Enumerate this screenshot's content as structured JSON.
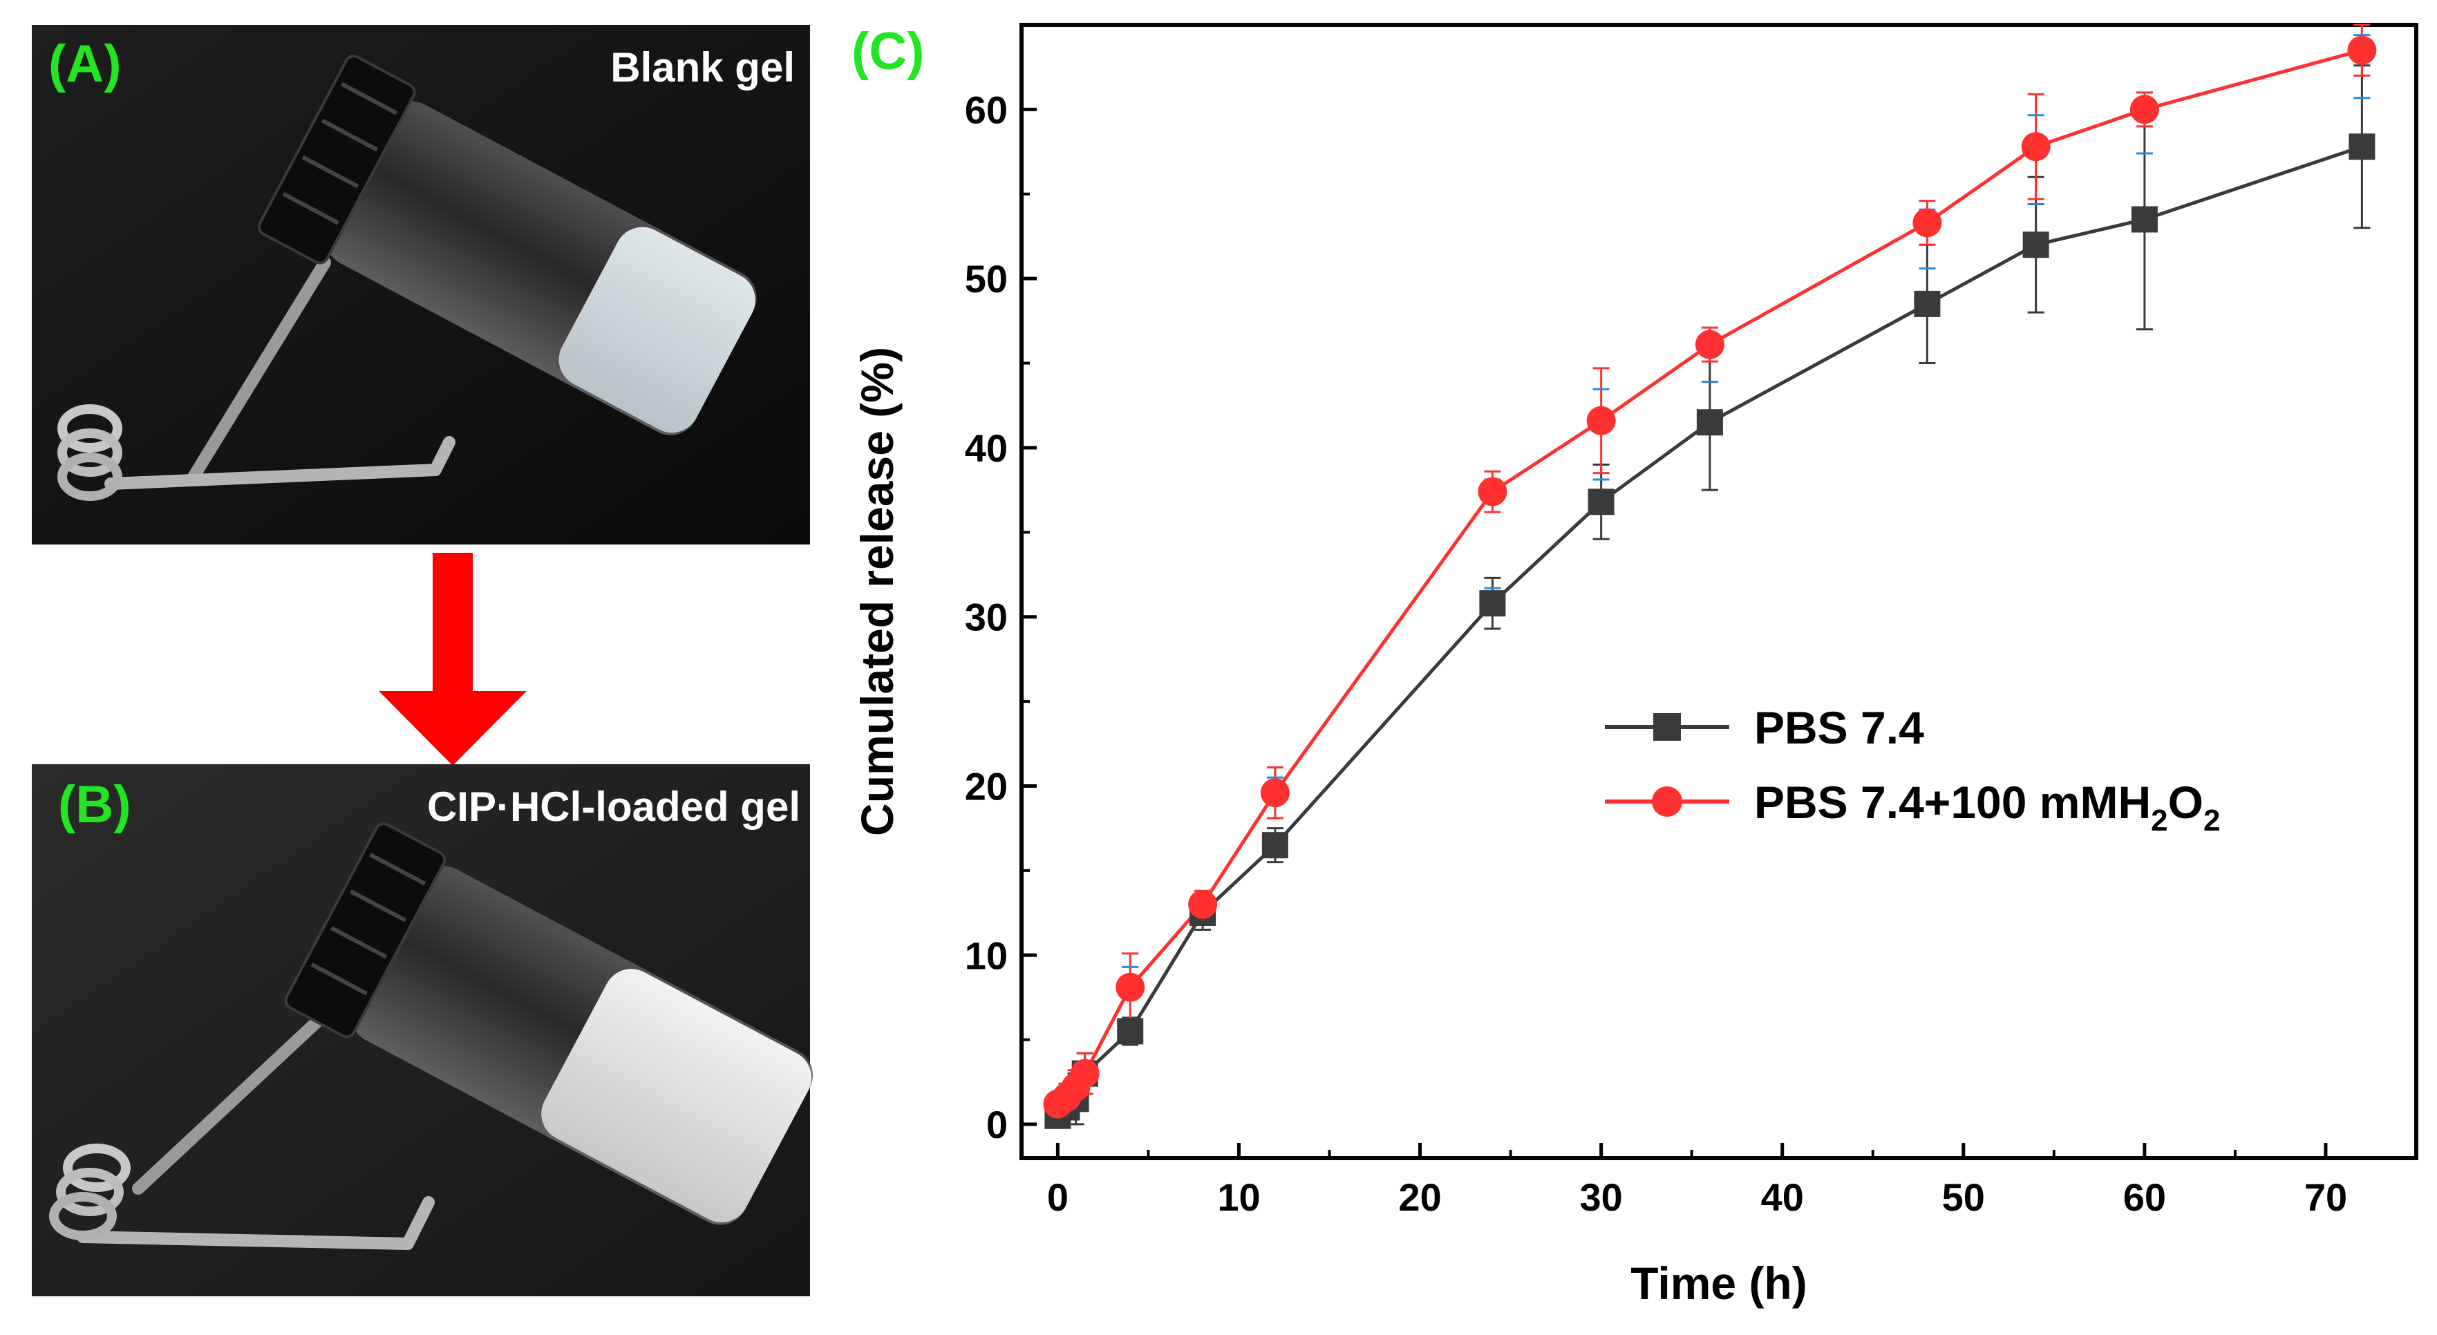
{
  "panels": {
    "a": {
      "label": "(A)",
      "caption": "Blank gel"
    },
    "b": {
      "label": "(B)",
      "caption": "CIP·HCl-loaded gel"
    },
    "c": {
      "label": "(C)"
    }
  },
  "colors": {
    "panel_label": "#22e622",
    "arrow": "#ff0000",
    "series_pbs": "#3a3a3a",
    "series_h2o2": "#ff3030",
    "error_bar_blue": "#2a8ad8"
  },
  "chart_data": {
    "type": "line",
    "title": "",
    "xlabel": "Time (h)",
    "ylabel": "Cumulated release (%)",
    "xlim": [
      -2,
      75
    ],
    "ylim": [
      -2,
      65
    ],
    "xticks": [
      0,
      10,
      20,
      30,
      40,
      50,
      60,
      70
    ],
    "yticks": [
      0,
      10,
      20,
      30,
      40,
      50,
      60
    ],
    "legend_position": "center-right",
    "x": [
      0,
      0.5,
      1,
      1.5,
      4,
      8,
      12,
      24,
      30,
      36,
      48,
      54,
      60,
      72
    ],
    "series": [
      {
        "name": "PBS 7.4",
        "legend_label": "PBS 7.4",
        "marker": "square",
        "values": [
          0.5,
          1.0,
          1.5,
          3.0,
          5.5,
          12.5,
          16.5,
          30.8,
          36.8,
          41.5,
          48.5,
          52.0,
          53.5,
          57.8
        ],
        "errors": [
          0.5,
          1.0,
          1.5,
          1.2,
          0.8,
          1.0,
          1.0,
          1.5,
          2.2,
          4.0,
          3.5,
          4.0,
          6.5,
          4.8
        ]
      },
      {
        "name": "PBS 7.4+100 mMH2O2",
        "legend_label": "PBS 7.4+100 mMH",
        "legend_sub_1": "2",
        "legend_mid": "O",
        "legend_sub_2": "2",
        "marker": "circle",
        "values": [
          1.2,
          1.6,
          2.2,
          3.0,
          8.1,
          13.0,
          19.6,
          37.4,
          41.6,
          46.1,
          53.3,
          57.8,
          60.0,
          63.5
        ],
        "errors": [
          0.6,
          0.8,
          1.0,
          1.2,
          2.0,
          0.8,
          1.5,
          1.2,
          3.1,
          1.0,
          1.3,
          3.1,
          1.0,
          1.5
        ]
      }
    ]
  }
}
